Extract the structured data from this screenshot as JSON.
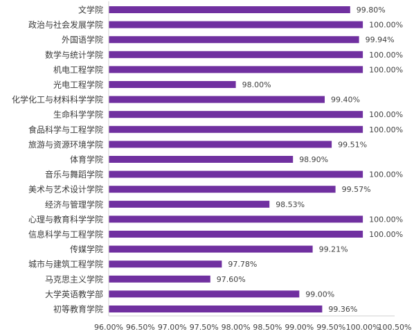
{
  "chart_data": {
    "type": "bar",
    "orientation": "horizontal",
    "categories": [
      "文学院",
      "政治与社会发展学院",
      "外国语学院",
      "数学与统计学院",
      "机电工程学院",
      "光电工程学院",
      "化学化工与材料科学学院",
      "生命科学学院",
      "食品科学与工程学院",
      "旅游与资源环境学院",
      "体育学院",
      "音乐与舞蹈学院",
      "美术与艺术设计学院",
      "经济与管理学院",
      "心理与教育科学学院",
      "信息科学与工程学院",
      "传媒学院",
      "城市与建筑工程学院",
      "马克思主义学院",
      "大学英语教学部",
      "初等教育学院"
    ],
    "values": [
      99.8,
      100.0,
      99.94,
      100.0,
      100.0,
      98.0,
      99.4,
      100.0,
      100.0,
      99.51,
      98.9,
      100.0,
      99.57,
      98.53,
      100.0,
      100.0,
      99.21,
      97.78,
      97.6,
      99.0,
      99.36
    ],
    "value_labels": [
      "99.80%",
      "100.00%",
      "99.94%",
      "100.00%",
      "100.00%",
      "98.00%",
      "99.40%",
      "100.00%",
      "100.00%",
      "99.51%",
      "98.90%",
      "100.00%",
      "99.57%",
      "98.53%",
      "100.00%",
      "100.00%",
      "99.21%",
      "97.78%",
      "97.60%",
      "99.00%",
      "99.36%"
    ],
    "x_ticks": [
      "96.00%",
      "96.50%",
      "97.00%",
      "97.50%",
      "98.00%",
      "98.50%",
      "99.00%",
      "99.50%",
      "100.00%",
      "100.50%"
    ],
    "xlim": [
      96.0,
      100.5
    ],
    "grid": false,
    "bar_color": "#7030a0"
  }
}
